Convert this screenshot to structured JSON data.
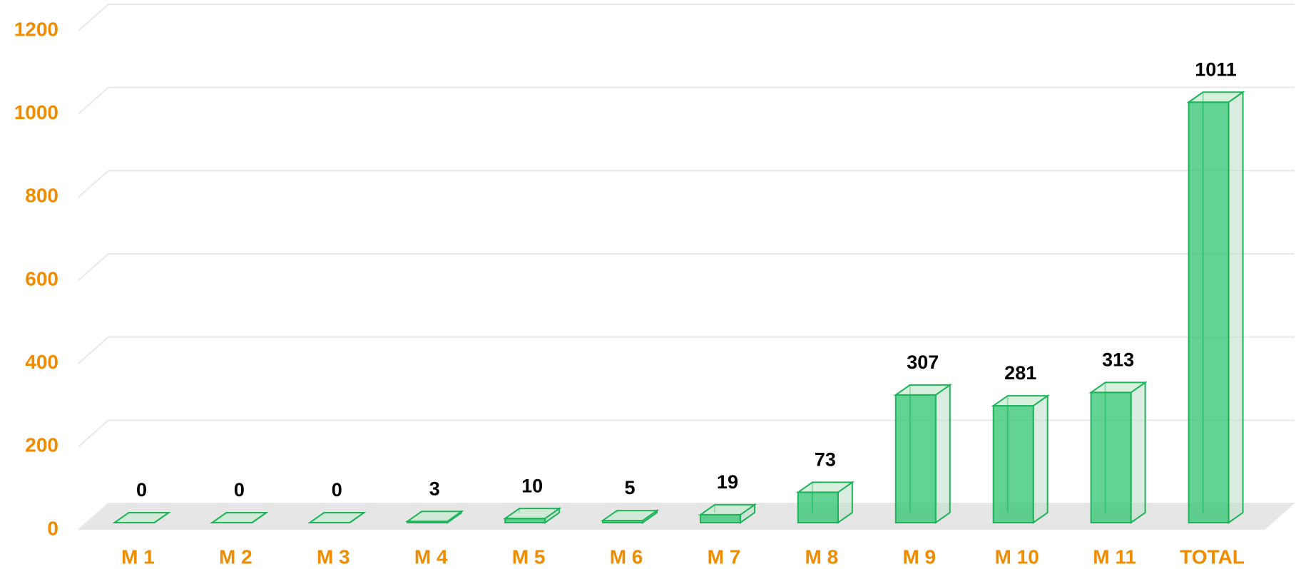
{
  "chart_data": {
    "type": "bar3d",
    "categories": [
      "M 1",
      "M 2",
      "M 3",
      "M 4",
      "M 5",
      "M 6",
      "M 7",
      "M 8",
      "M 9",
      "M 10",
      "M 11",
      "TOTAL"
    ],
    "values": [
      0,
      0,
      0,
      3,
      10,
      5,
      19,
      73,
      307,
      281,
      313,
      1011
    ],
    "color": "#3cc878",
    "ylim": [
      0,
      1200
    ],
    "yticks": [
      0,
      200,
      400,
      600,
      800,
      1000,
      1200
    ],
    "grid": true
  }
}
